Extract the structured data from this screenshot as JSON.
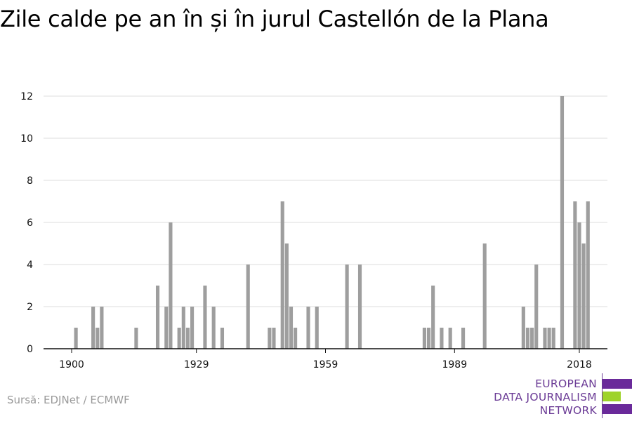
{
  "title": "Zile calde pe an în și în jurul Castellón de la Plana",
  "source": "Sursă: EDJNet / ECMWF",
  "logo": {
    "lines": [
      "EUROPEAN",
      "DATA JOURNALISM",
      "NETWORK"
    ],
    "colors": {
      "text": "#6a3a95",
      "purple": "#6a2a9a",
      "green": "#9ed32a"
    }
  },
  "chart_data": {
    "type": "bar",
    "title": "Zile calde pe an în și în jurul Castellón de la Plana",
    "xlabel": "",
    "ylabel": "",
    "xlim": [
      1900,
      2019
    ],
    "ylim": [
      0,
      12
    ],
    "x_ticks": [
      1900,
      1929,
      1959,
      1989,
      2018
    ],
    "y_ticks": [
      0,
      2,
      4,
      6,
      8,
      10,
      12
    ],
    "grid": true,
    "bar_color": "#9e9e9e",
    "categories": [
      1901,
      1905,
      1906,
      1907,
      1915,
      1920,
      1922,
      1923,
      1925,
      1926,
      1927,
      1928,
      1931,
      1933,
      1935,
      1941,
      1946,
      1947,
      1949,
      1950,
      1951,
      1952,
      1955,
      1957,
      1964,
      1967,
      1982,
      1983,
      1984,
      1986,
      1988,
      1991,
      1996,
      2005,
      2006,
      2007,
      2008,
      2010,
      2011,
      2012,
      2014,
      2017,
      2018,
      2019,
      2020
    ],
    "values": [
      1,
      2,
      1,
      2,
      1,
      3,
      2,
      6,
      1,
      2,
      1,
      2,
      3,
      2,
      1,
      4,
      1,
      1,
      7,
      5,
      2,
      1,
      2,
      2,
      4,
      4,
      1,
      1,
      3,
      1,
      1,
      1,
      5,
      2,
      1,
      1,
      4,
      1,
      1,
      1,
      12,
      7,
      6,
      5,
      7
    ]
  }
}
